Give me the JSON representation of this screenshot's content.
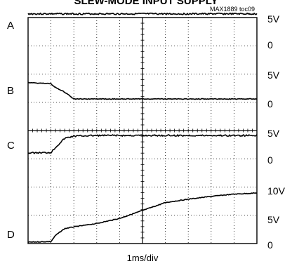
{
  "figure": {
    "title_partial": "SLEW-MODE INPUT SUPPLY",
    "toc_code": "MAX1889 toc09",
    "x_axis_label": "1ms/div"
  },
  "chart_data": {
    "type": "line",
    "title": "SLEW-MODE INPUT SUPPLY",
    "xlabel": "1ms/div",
    "x_divisions": 10,
    "y_divisions": 8,
    "grid": true,
    "x": [
      0,
      1.0,
      1.2,
      1.6,
      2.0,
      2.5,
      3.0,
      4.0,
      5.0,
      6.0,
      7.0,
      8.0,
      9.0,
      10.0
    ],
    "series": [
      {
        "name": "A",
        "scale": "5V/div",
        "tick_labels": [
          "5V",
          "0"
        ],
        "values": [
          5,
          5,
          5,
          5,
          5,
          5,
          5,
          5,
          5,
          5,
          5,
          5,
          5,
          5
        ]
      },
      {
        "name": "B",
        "scale": "5V/div",
        "tick_labels": [
          "5V",
          "0"
        ],
        "values": [
          2.9,
          2.7,
          2.0,
          1.2,
          0,
          0,
          0,
          0,
          0,
          0,
          0,
          0,
          0,
          0
        ]
      },
      {
        "name": "C",
        "scale": "5V/div",
        "tick_labels": [
          "5V",
          "0"
        ],
        "values": [
          0,
          0.1,
          1.0,
          2.6,
          3.0,
          3.05,
          3.1,
          3.1,
          3.1,
          3.1,
          3.1,
          3.1,
          3.1,
          3.1
        ]
      },
      {
        "name": "D",
        "scale": "5V/div",
        "tick_labels": [
          "10V",
          "5V",
          "0"
        ],
        "values": [
          0,
          0.1,
          1.2,
          2.4,
          2.7,
          3.0,
          3.3,
          4.2,
          5.6,
          7.0,
          7.6,
          8.1,
          8.5,
          8.7
        ]
      }
    ],
    "right_axis_labels": [
      "5V",
      "0",
      "5V",
      "0",
      "5V",
      "0",
      "10V",
      "5V",
      "0"
    ]
  }
}
